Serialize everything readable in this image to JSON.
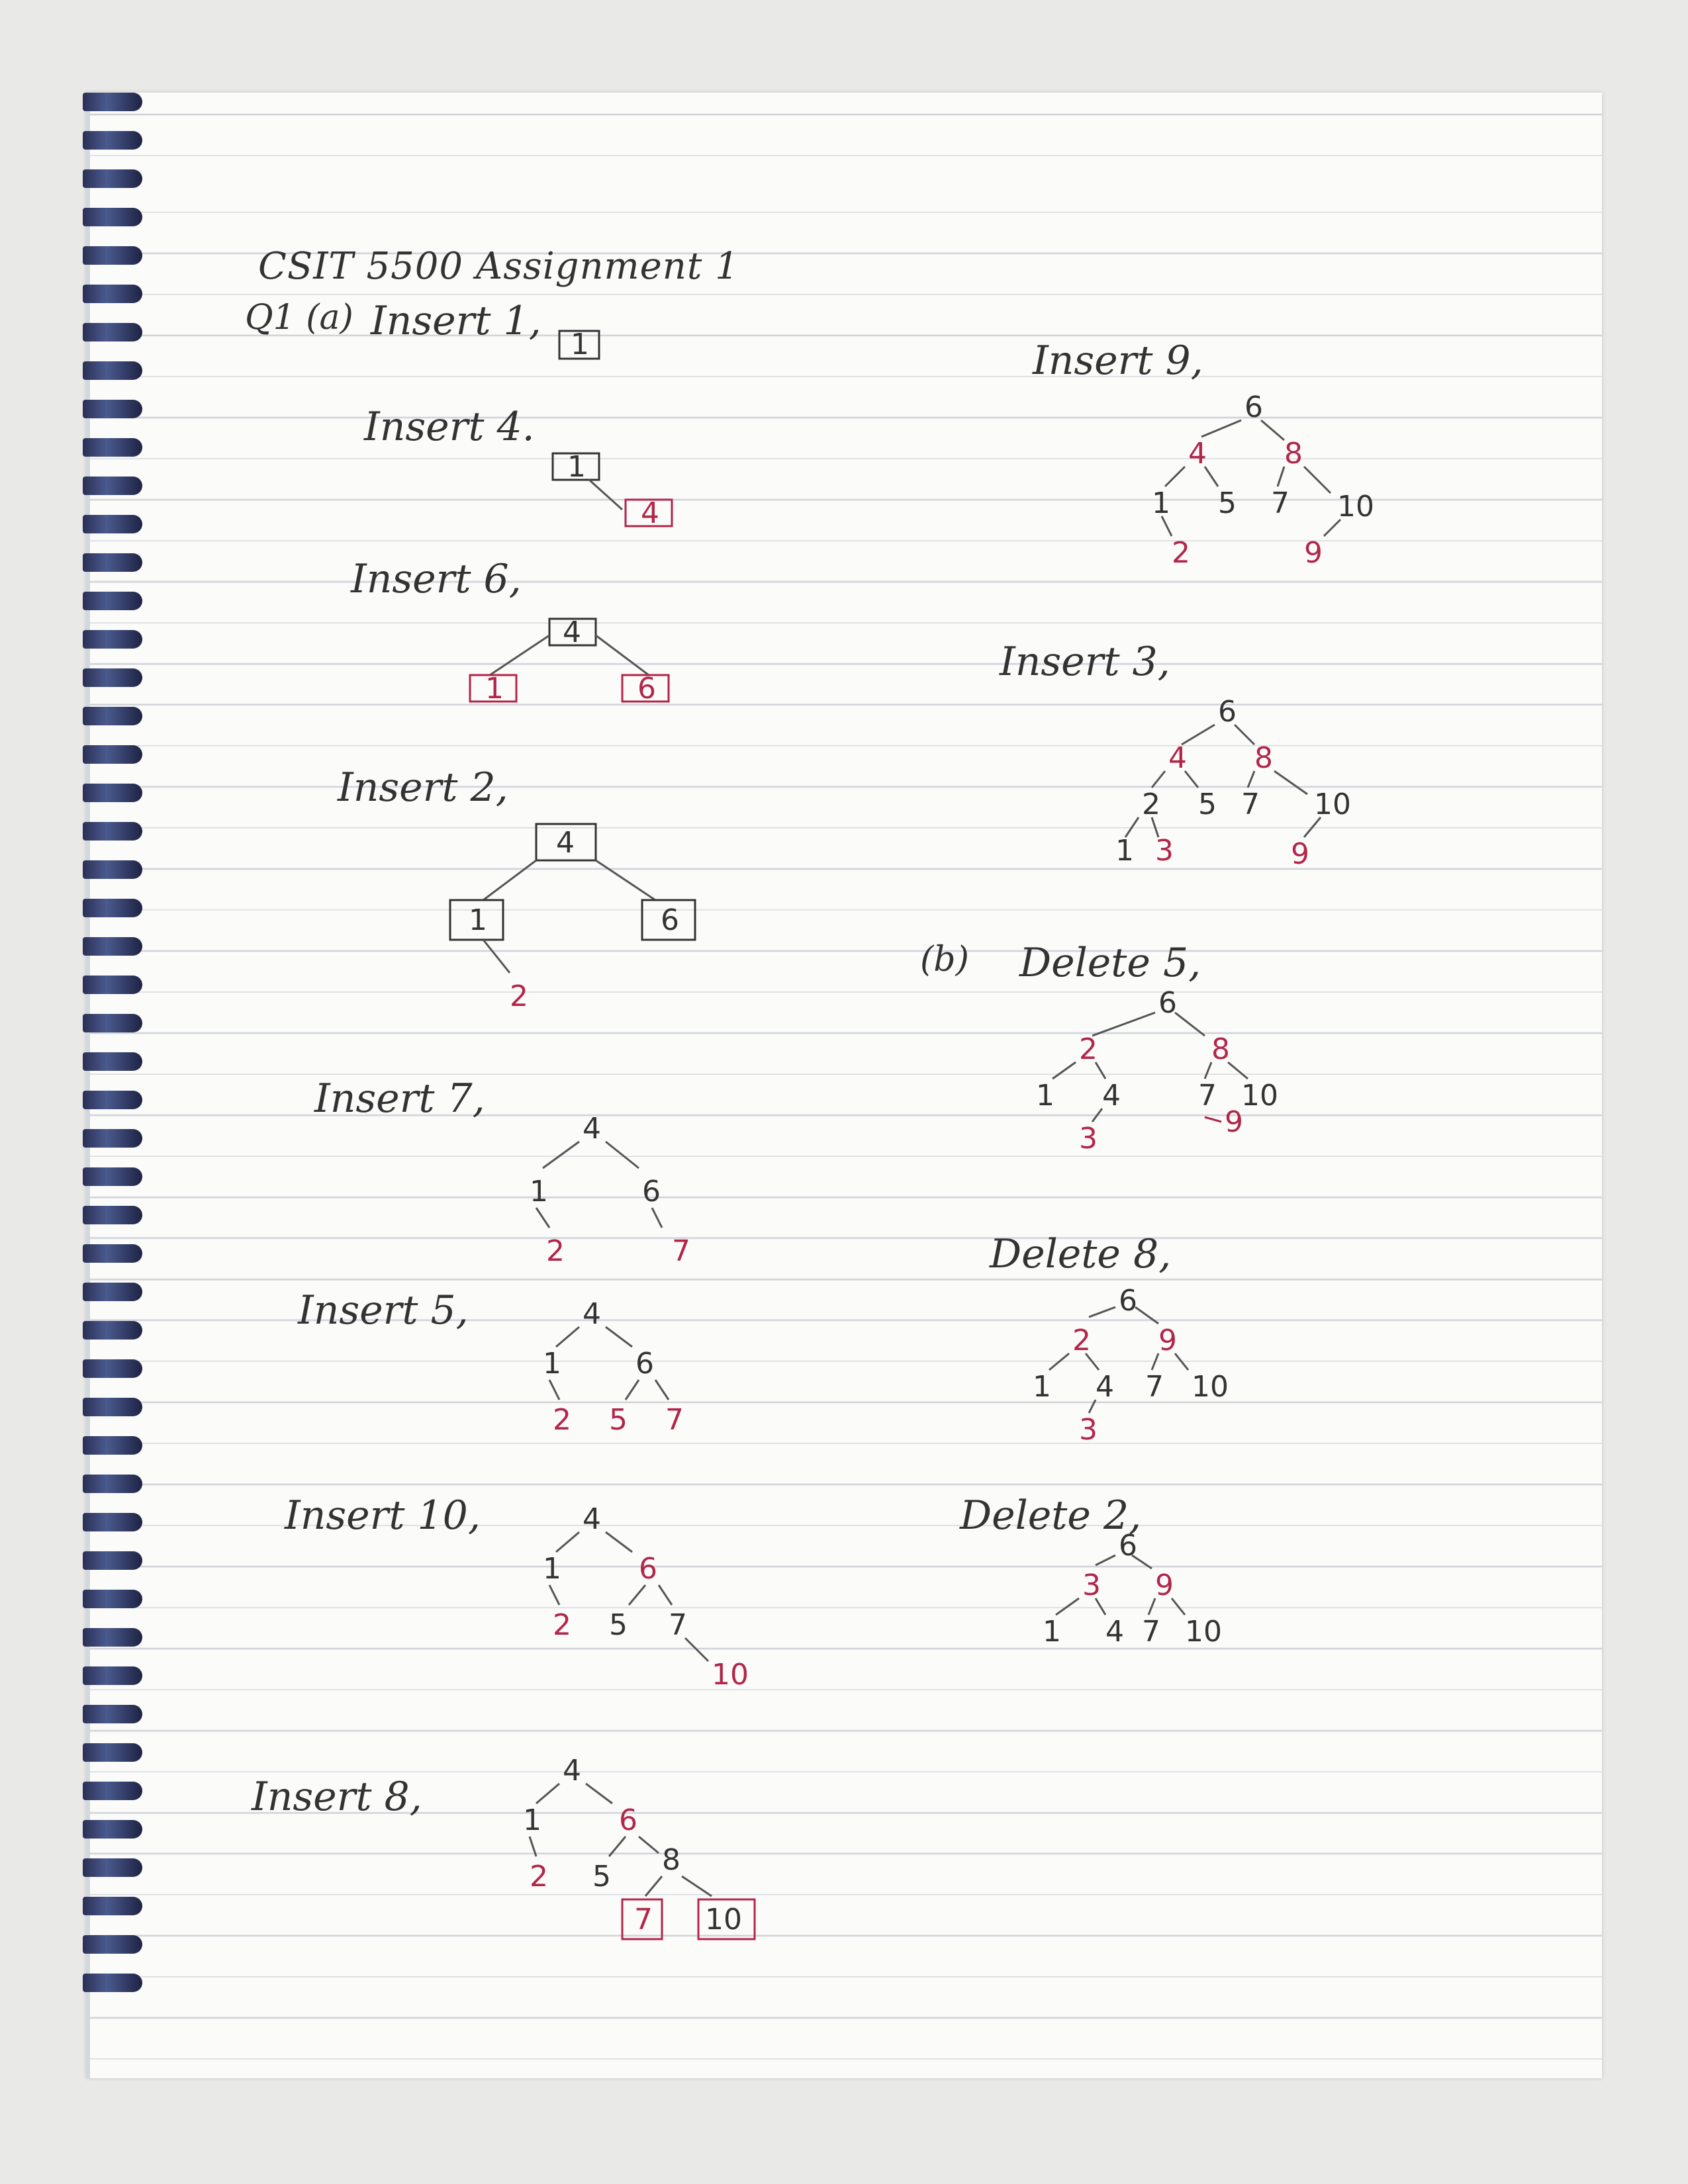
{
  "header": {
    "title": "CSIT 5500 Assignment 1",
    "q_label": "Q1 (a)"
  },
  "part_a": [
    {
      "label": "Insert 1,"
    },
    {
      "label": "Insert 4."
    },
    {
      "label": "Insert 6,"
    },
    {
      "label": "Insert 2,"
    },
    {
      "label": "Insert 7,"
    },
    {
      "label": "Insert 5,"
    },
    {
      "label": "Insert 10,"
    },
    {
      "label": "Insert 8,"
    },
    {
      "label": "Insert 9,"
    },
    {
      "label": "Insert 3,"
    }
  ],
  "part_b": {
    "label": "(b)",
    "steps": [
      {
        "label": "Delete 5,"
      },
      {
        "label": "Delete 8,"
      },
      {
        "label": "Delete 2,"
      }
    ]
  },
  "colors": {
    "ink": "#333333",
    "red_ink": "#b2264a"
  }
}
